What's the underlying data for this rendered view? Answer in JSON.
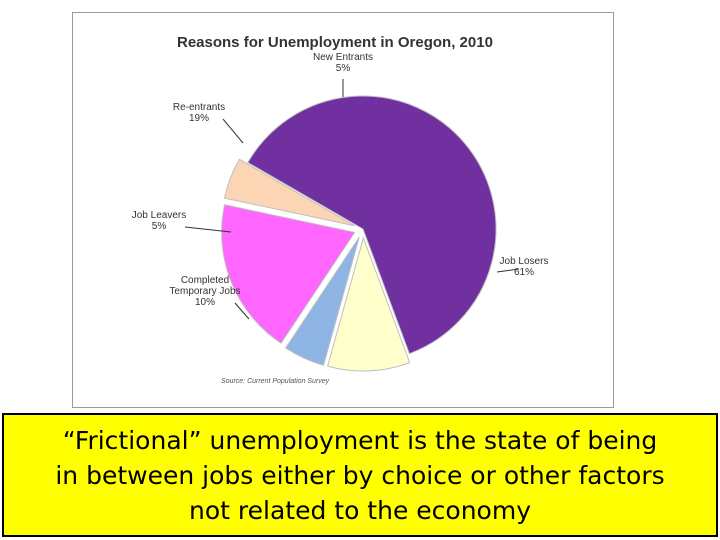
{
  "chart_data": {
    "type": "pie",
    "title": "Reasons for Unemployment in Oregon, 2010",
    "slices": [
      {
        "label_lines": [
          "Job Losers",
          "61%"
        ],
        "value": 61,
        "color": "#7030a0",
        "explode": false
      },
      {
        "label_lines": [
          "Completed",
          "Temporary Jobs",
          "10%"
        ],
        "value": 10,
        "color": "#ffffcc",
        "explode": true
      },
      {
        "label_lines": [
          "Job Leavers",
          "5%"
        ],
        "value": 5,
        "color": "#8eb4e3",
        "explode": true
      },
      {
        "label_lines": [
          "Re-entrants",
          "19%"
        ],
        "value": 19,
        "color": "#ff66ff",
        "explode": true
      },
      {
        "label_lines": [
          "New Entrants",
          "5%"
        ],
        "value": 5,
        "color": "#fcd5b4",
        "explode": true
      }
    ],
    "source": "Source: Current Population Survey"
  },
  "caption": {
    "line1": "“Frictional” unemployment is the state of being",
    "line2": "in between jobs either by choice or other factors",
    "line3": "not related to the economy"
  }
}
